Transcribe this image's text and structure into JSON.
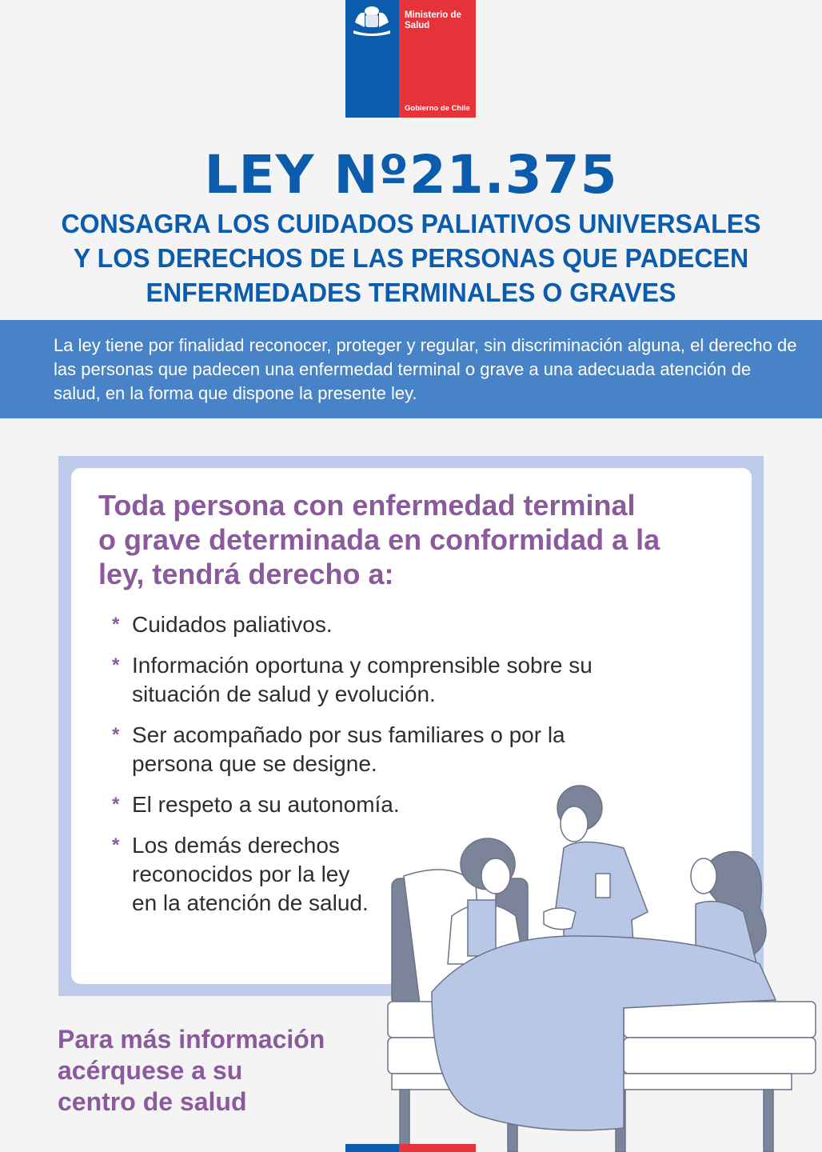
{
  "logo": {
    "line1": "Ministerio de",
    "line2": "Salud",
    "footer": "Gobierno de Chile",
    "colors": {
      "blue": "#0b5cad",
      "red": "#e6333a"
    }
  },
  "title": "LEY Nº21.375",
  "subtitle": [
    "CONSAGRA LOS CUIDADOS PALIATIVOS UNIVERSALES",
    "Y LOS DERECHOS DE LAS PERSONAS QUE PADECEN",
    "ENFERMEDADES TERMINALES O GRAVES"
  ],
  "intro": "La ley tiene por finalidad reconocer, proteger y regular, sin discriminación alguna, el derecho de las personas que padecen una enfermedad terminal o grave a una adecuada atención de salud, en la forma que dispone la presente ley.",
  "rights": {
    "heading": [
      "Toda persona con enfermedad terminal",
      "o grave determinada en conformidad a la",
      "ley, tendrá derecho a:"
    ],
    "items": [
      "Cuidados paliativos.",
      "Información oportuna y comprensible sobre su situación de salud y evolución.",
      "Ser acompañado por sus familiares o por la persona que se designe.",
      "El respeto a su autonomía.",
      "Los demás derechos reconocidos por la ley en la atención de salud."
    ]
  },
  "footer": [
    "Para más información",
    "acérquese a su",
    "centro de salud"
  ],
  "colors": {
    "primary_blue": "#0b5cad",
    "band_blue": "#4783c6",
    "purple": "#8a5a9c",
    "frame": "#bccbe9"
  }
}
